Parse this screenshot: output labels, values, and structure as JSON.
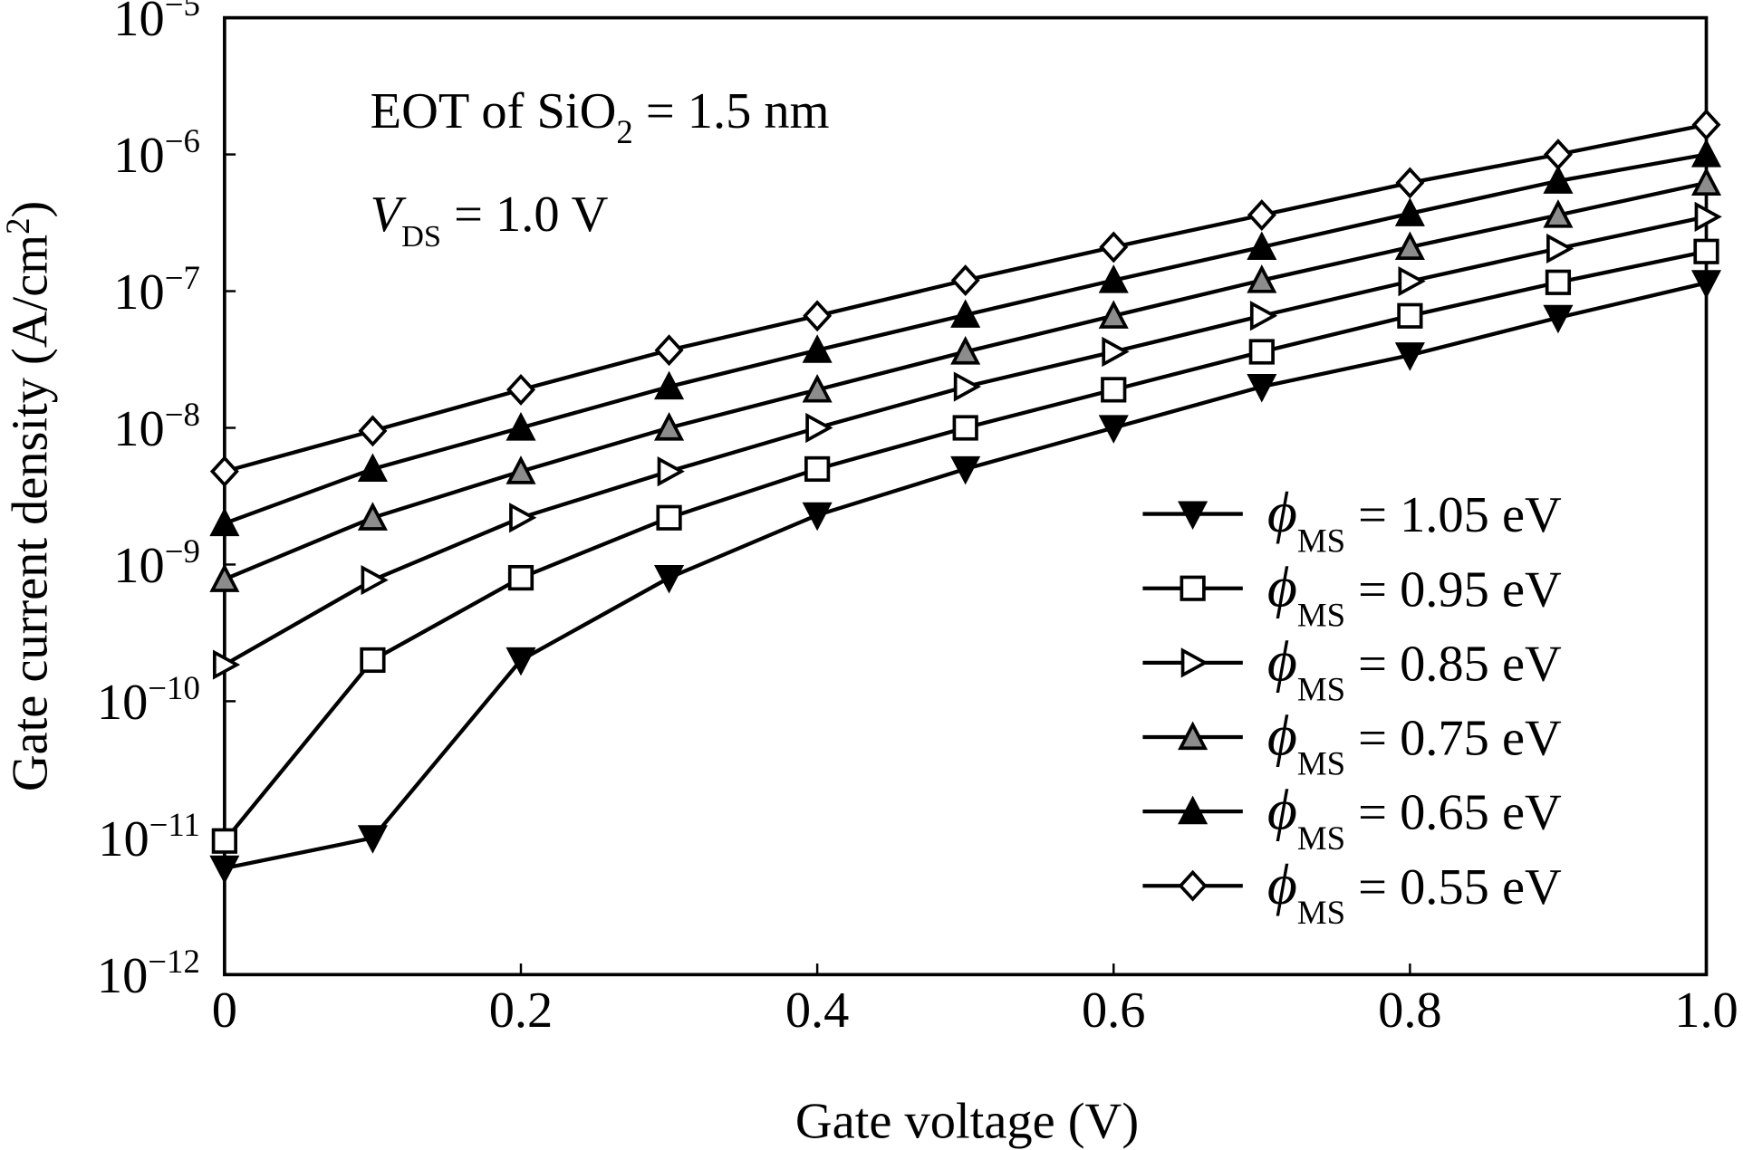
{
  "chart_data": {
    "type": "line",
    "title": "",
    "xlabel": "Gate voltage (V)",
    "ylabel": "Gate current density (A/cm²)",
    "ylabel_parts": {
      "main": "Gate current density (A/cm",
      "sup": "2",
      "end": ")"
    },
    "xlim": [
      0,
      1.0
    ],
    "ylim": [
      1e-12,
      1e-05
    ],
    "yscale": "log",
    "grid": false,
    "legend_position": "bottom-right",
    "x_ticks": [
      "0",
      "0.2",
      "0.4",
      "0.6",
      "0.8",
      "1.0"
    ],
    "y_ticks": [
      {
        "base": "10",
        "exp": "−5"
      },
      {
        "base": "10",
        "exp": "−6"
      },
      {
        "base": "10",
        "exp": "−7"
      },
      {
        "base": "10",
        "exp": "−8"
      },
      {
        "base": "10",
        "exp": "−9"
      },
      {
        "base": "10",
        "exp": "−10"
      },
      {
        "base": "10",
        "exp": "−11"
      },
      {
        "base": "10",
        "exp": "−12"
      }
    ],
    "annotations": [
      {
        "parts": [
          "EOT of SiO",
          "2",
          " = 1.5 nm"
        ]
      },
      {
        "parts": [
          "V",
          "DS",
          " = 1.0 V"
        ]
      }
    ],
    "x": [
      0,
      0.1,
      0.2,
      0.3,
      0.4,
      0.5,
      0.6,
      0.7,
      0.8,
      0.9,
      1.0
    ],
    "series": [
      {
        "name": "ϕMS = 1.05 eV",
        "symbol": "ϕ",
        "sub": "MS",
        "value_label": "= 1.05 eV",
        "marker": "triangle-down",
        "fill": "#000000",
        "values": [
          6e-12,
          1e-11,
          2e-10,
          8e-10,
          2.3e-09,
          5e-09,
          1e-08,
          2e-08,
          3.4e-08,
          6.4e-08,
          1.15e-07
        ]
      },
      {
        "name": "ϕMS = 0.95 eV",
        "symbol": "ϕ",
        "sub": "MS",
        "value_label": "= 0.95 eV",
        "marker": "square",
        "fill": "#ffffff",
        "values": [
          9.5e-12,
          2e-10,
          8e-10,
          2.2e-09,
          5e-09,
          1e-08,
          1.9e-08,
          3.6e-08,
          6.6e-08,
          1.16e-07,
          1.95e-07
        ]
      },
      {
        "name": "ϕMS = 0.85 eV",
        "symbol": "ϕ",
        "sub": "MS",
        "value_label": "= 0.85 eV",
        "marker": "triangle-right",
        "fill": "#ffffff",
        "values": [
          1.85e-10,
          7.7e-10,
          2.2e-09,
          4.8e-09,
          1e-08,
          2e-08,
          3.6e-08,
          6.6e-08,
          1.18e-07,
          2.05e-07,
          3.5e-07
        ]
      },
      {
        "name": "ϕMS = 0.75 eV",
        "symbol": "ϕ",
        "sub": "MS",
        "value_label": "= 0.75 eV",
        "marker": "triangle-up",
        "fill": "#8c8c8c",
        "values": [
          7.8e-10,
          2.2e-09,
          4.8e-09,
          1e-08,
          1.9e-08,
          3.6e-08,
          6.6e-08,
          1.2e-07,
          2.1e-07,
          3.6e-07,
          6.2e-07
        ]
      },
      {
        "name": "ϕMS = 0.65 eV",
        "symbol": "ϕ",
        "sub": "MS",
        "value_label": "= 0.65 eV",
        "marker": "triangle-up",
        "fill": "#000000",
        "values": [
          2e-09,
          5e-09,
          1e-08,
          2e-08,
          3.7e-08,
          6.7e-08,
          1.2e-07,
          2.1e-07,
          3.7e-07,
          6.4e-07,
          1e-06
        ]
      },
      {
        "name": "ϕMS = 0.55 eV",
        "symbol": "ϕ",
        "sub": "MS",
        "value_label": "= 0.55 eV",
        "marker": "diamond",
        "fill": "#ffffff",
        "values": [
          4.8e-09,
          9.5e-09,
          1.9e-08,
          3.7e-08,
          6.6e-08,
          1.2e-07,
          2.1e-07,
          3.6e-07,
          6.2e-07,
          1e-06,
          1.65e-06
        ]
      }
    ]
  }
}
